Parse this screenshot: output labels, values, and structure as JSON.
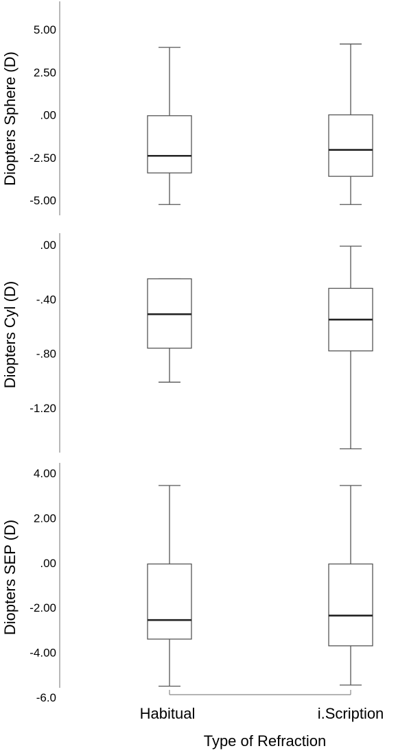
{
  "chart_data": [
    {
      "type": "boxplot",
      "ylabel": "Diopters Sphere (D)",
      "ylim": [
        -5.5,
        6.5
      ],
      "yticks": [
        5.0,
        2.5,
        0.0,
        -2.5,
        -5.0
      ],
      "ytick_labels": [
        "5.00",
        "2.50",
        ".00",
        "-2.50",
        "-5.00"
      ],
      "categories": [
        "Habitual",
        "i.Scription"
      ],
      "boxes": [
        {
          "category": "Habitual",
          "whisker_low": -5.25,
          "q1": -3.4,
          "median": -2.4,
          "q3": -0.05,
          "whisker_high": 3.95
        },
        {
          "category": "i.Scription",
          "whisker_low": -5.25,
          "q1": -3.6,
          "median": -2.05,
          "q3": 0.0,
          "whisker_high": 4.15
        }
      ]
    },
    {
      "type": "boxplot",
      "ylabel": "Diopters Cyl (D)",
      "ylim": [
        -1.5,
        0.05
      ],
      "yticks": [
        0.0,
        -0.4,
        -0.8,
        -1.2
      ],
      "ytick_labels": [
        ".00",
        "-.40",
        "-.80",
        "-1.20"
      ],
      "categories": [
        "Habitual",
        "i.Scription"
      ],
      "boxes": [
        {
          "category": "Habitual",
          "whisker_low": -1.01,
          "q1": -0.76,
          "median": -0.51,
          "q3": -0.25,
          "whisker_high": -0.25
        },
        {
          "category": "i.Scription",
          "whisker_low": -1.5,
          "q1": -0.78,
          "median": -0.55,
          "q3": -0.32,
          "whisker_high": -0.01
        }
      ]
    },
    {
      "type": "boxplot",
      "ylabel": "Diopters SEP (D)",
      "xlabel": "Type of Refraction",
      "ylim": [
        -6.0,
        4.0
      ],
      "yticks": [
        4.0,
        2.0,
        0.0,
        -2.0,
        -4.0,
        -6.0
      ],
      "ytick_labels": [
        "4.00",
        "2.00",
        ".00",
        "-2.00",
        "-4.00",
        "-6.0"
      ],
      "categories": [
        "Habitual",
        "i.Scription"
      ],
      "boxes": [
        {
          "category": "Habitual",
          "whisker_low": -5.5,
          "q1": -3.4,
          "median": -2.55,
          "q3": -0.05,
          "whisker_high": 3.45
        },
        {
          "category": "i.Scription",
          "whisker_low": -5.45,
          "q1": -3.7,
          "median": -2.35,
          "q3": -0.05,
          "whisker_high": 3.45
        }
      ]
    }
  ],
  "colors": {
    "box_stroke": "#555555",
    "median": "#222222",
    "axis": "#888888",
    "background": "#ffffff"
  }
}
